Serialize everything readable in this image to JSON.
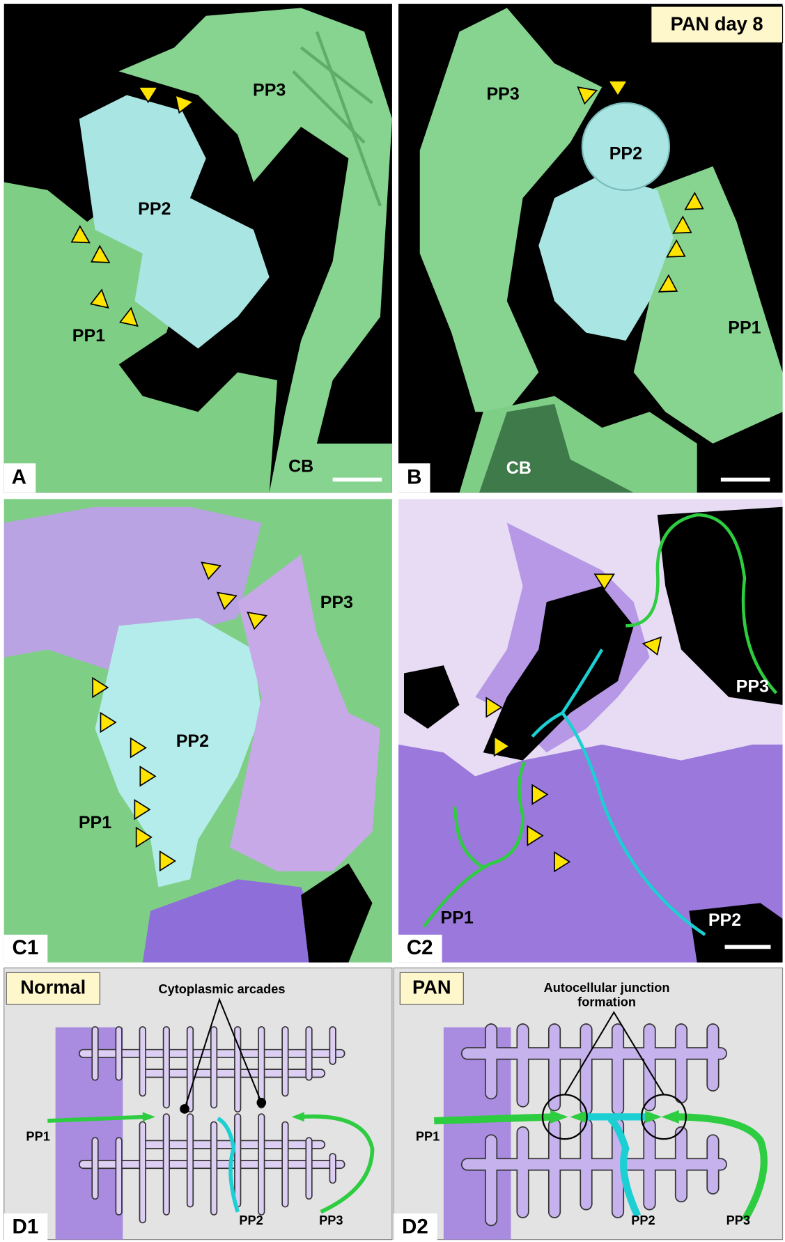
{
  "panel_a": {
    "label": "A",
    "pp3": "PP3",
    "pp2": "PP2",
    "pp1": "PP1",
    "cb": "CB"
  },
  "panel_b": {
    "label": "B",
    "badge": "PAN day 8",
    "pp3": "PP3",
    "pp2": "PP2",
    "pp1": "PP1",
    "cb": "CB"
  },
  "panel_c1": {
    "label": "C1",
    "pp3": "PP3",
    "pp2": "PP2",
    "pp1": "PP1"
  },
  "panel_c2": {
    "label": "C2",
    "pp3": "PP3",
    "pp2": "PP2",
    "pp1": "PP1"
  },
  "panel_d1": {
    "label": "D1",
    "header": "Normal",
    "annotation": "Cytoplasmic arcades",
    "pp1": "PP1",
    "pp2": "PP2",
    "pp3": "PP3"
  },
  "panel_d2": {
    "label": "D2",
    "header": "PAN",
    "annotation": [
      "Autocellular junction",
      "formation"
    ],
    "pp1": "PP1",
    "pp2": "PP2",
    "pp3": "PP3"
  }
}
